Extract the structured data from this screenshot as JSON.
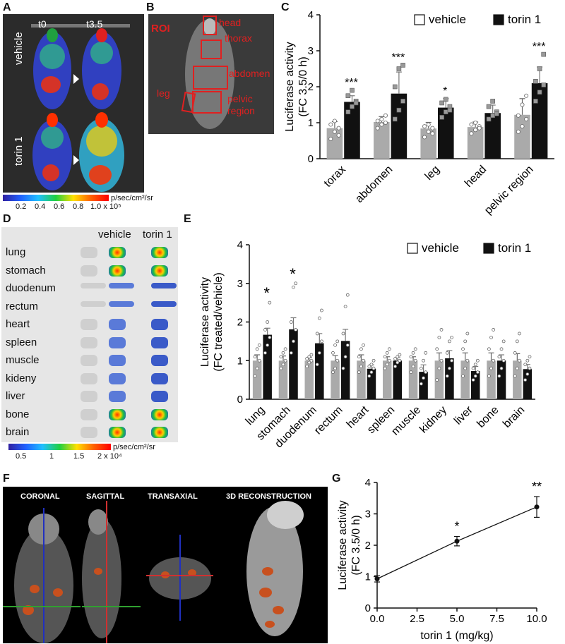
{
  "panels": {
    "A": {
      "letter": "A",
      "cols": [
        "t0",
        "t3.5"
      ],
      "rows": [
        "vehicle",
        "torin 1"
      ],
      "colorbar": {
        "ticks": [
          "0.2",
          "0.4",
          "0.6",
          "0.8",
          "1.0 x 10⁵"
        ],
        "unit": "p/sec/cm²/sr"
      }
    },
    "B": {
      "letter": "B",
      "roi": "ROI",
      "regions": [
        "head",
        "thorax",
        "abdomen",
        "leg",
        "pelvic region"
      ]
    },
    "C": {
      "letter": "C"
    },
    "D": {
      "letter": "D",
      "cols": [
        "vehicle",
        "torin 1"
      ],
      "organs": [
        "lung",
        "stomach",
        "duodenum",
        "rectum",
        "heart",
        "spleen",
        "muscle",
        "kideny",
        "liver",
        "bone",
        "brain"
      ],
      "colorbar": {
        "ticks": [
          "0.5",
          "1",
          "1.5",
          "2 x 10⁴"
        ],
        "unit": "p/sec/cm²/sr"
      }
    },
    "E": {
      "letter": "E"
    },
    "F": {
      "letter": "F",
      "views": [
        "CORONAL",
        "SAGITTAL",
        "TRANSAXIAL",
        "3D RECONSTRUCTION"
      ]
    },
    "G": {
      "letter": "G"
    }
  },
  "chart_data": [
    {
      "id": "C",
      "type": "bar",
      "ylabel": "Luciferase activity\n(FC 3.5/0 h)",
      "categories": [
        "torax",
        "abdomen",
        "leg",
        "head",
        "pelvic region"
      ],
      "ylim": [
        0,
        4
      ],
      "yticks": [
        0,
        1,
        2,
        3,
        4
      ],
      "legend": {
        "position": "top-right"
      },
      "series": [
        {
          "name": "vehicle",
          "color": "#aaaaaa",
          "values": [
            0.85,
            1.02,
            0.84,
            0.88,
            1.22
          ],
          "errors": [
            0.18,
            0.15,
            0.17,
            0.14,
            0.45
          ],
          "points": [
            [
              0.55,
              0.75,
              0.85,
              0.95,
              1.05,
              0.65
            ],
            [
              0.85,
              0.95,
              1.0,
              1.05,
              1.1,
              1.2
            ],
            [
              0.6,
              0.75,
              0.85,
              0.9,
              0.95,
              0.7
            ],
            [
              0.7,
              0.8,
              0.9,
              0.95,
              1.0,
              0.85
            ],
            [
              0.75,
              0.9,
              1.1,
              1.2,
              1.5,
              1.75
            ]
          ]
        },
        {
          "name": "torin 1",
          "color": "#111111",
          "values": [
            1.58,
            1.81,
            1.42,
            1.27,
            2.1
          ],
          "errors": [
            0.17,
            0.6,
            0.25,
            0.22,
            0.45
          ],
          "points": [
            [
              1.3,
              1.45,
              1.6,
              1.75,
              1.9,
              1.55
            ],
            [
              1.1,
              1.35,
              1.6,
              2.0,
              2.5,
              2.6
            ],
            [
              1.15,
              1.3,
              1.45,
              1.55,
              1.65,
              1.35
            ],
            [
              1.1,
              1.2,
              1.3,
              1.45,
              1.6,
              1.25
            ],
            [
              1.6,
              1.85,
              2.05,
              2.15,
              2.5,
              2.9
            ]
          ]
        }
      ],
      "annotations": [
        "***",
        "***",
        "*",
        "",
        "***"
      ]
    },
    {
      "id": "E",
      "type": "bar",
      "ylabel": "Luciferase activity\n(FC treated/vehicle)",
      "categories": [
        "lung",
        "stomach",
        "duodenum",
        "rectum",
        "heart",
        "spleen",
        "muscle",
        "kidney",
        "liver",
        "bone",
        "brain"
      ],
      "ylim": [
        0,
        4
      ],
      "yticks": [
        0,
        1,
        2,
        3,
        4
      ],
      "legend": {
        "position": "top-right"
      },
      "series": [
        {
          "name": "vehicle",
          "color": "#aaaaaa",
          "values": [
            1.0,
            1.0,
            1.0,
            1.0,
            1.0,
            1.0,
            1.0,
            1.0,
            1.0,
            1.0,
            1.0
          ],
          "errors": [
            0.15,
            0.12,
            0.08,
            0.13,
            0.15,
            0.1,
            0.1,
            0.2,
            0.2,
            0.2,
            0.18
          ],
          "points": [
            [
              0.6,
              0.8,
              1.0,
              1.1,
              1.3,
              1.4
            ],
            [
              0.8,
              0.9,
              1.0,
              1.1,
              1.2,
              1.3
            ],
            [
              0.85,
              0.95,
              1.0,
              1.05,
              1.1,
              1.15
            ],
            [
              0.7,
              0.8,
              1.0,
              1.2,
              1.4,
              1.5
            ],
            [
              0.7,
              0.85,
              1.0,
              1.1,
              1.3,
              1.4
            ],
            [
              0.8,
              0.9,
              1.0,
              1.1,
              1.2,
              1.3
            ],
            [
              0.7,
              0.85,
              1.0,
              1.1,
              1.2,
              1.3
            ],
            [
              0.5,
              0.8,
              1.0,
              1.3,
              1.6,
              1.8
            ],
            [
              0.6,
              0.8,
              1.0,
              1.3,
              1.5,
              1.7
            ],
            [
              0.6,
              0.8,
              1.0,
              1.3,
              1.6,
              1.8
            ],
            [
              0.6,
              0.8,
              1.0,
              1.2,
              1.5,
              1.7
            ]
          ]
        },
        {
          "name": "torin 1",
          "color": "#111111",
          "values": [
            1.67,
            1.81,
            1.45,
            1.51,
            0.79,
            1.0,
            0.71,
            1.06,
            0.73,
            1.0,
            0.78
          ],
          "errors": [
            0.17,
            0.3,
            0.25,
            0.3,
            0.1,
            0.08,
            0.18,
            0.2,
            0.12,
            0.15,
            0.12
          ],
          "points": [
            [
              1.2,
              1.4,
              1.6,
              1.8,
              2.0,
              2.5
            ],
            [
              1.2,
              1.5,
              1.8,
              2.0,
              2.9,
              3.0
            ],
            [
              0.9,
              1.2,
              1.5,
              1.7,
              2.1,
              2.3
            ],
            [
              0.8,
              1.1,
              1.4,
              1.7,
              2.4,
              2.7
            ],
            [
              0.6,
              0.7,
              0.8,
              0.85,
              0.9,
              1.0
            ],
            [
              0.85,
              0.95,
              1.0,
              1.05,
              1.1,
              1.15
            ],
            [
              0.4,
              0.55,
              0.7,
              0.8,
              1.0,
              1.2
            ],
            [
              0.6,
              0.8,
              1.0,
              1.2,
              1.5,
              1.6
            ],
            [
              0.5,
              0.6,
              0.7,
              0.8,
              0.9,
              1.0
            ],
            [
              0.6,
              0.8,
              1.0,
              1.1,
              1.3,
              1.5
            ],
            [
              0.5,
              0.65,
              0.8,
              0.9,
              1.0,
              1.1
            ]
          ]
        }
      ],
      "annotations": [
        "*",
        "*",
        "",
        "",
        "",
        "",
        "",
        "",
        "",
        "",
        ""
      ]
    },
    {
      "id": "G",
      "type": "line",
      "ylabel": "Luciferase activity\n(FC 3.5/0 h)",
      "xlabel": "torin 1 (mg/kg)",
      "x": [
        0.0,
        5.0,
        10.0
      ],
      "y": [
        0.93,
        2.13,
        3.22
      ],
      "errors": [
        0.1,
        0.15,
        0.33
      ],
      "xlim": [
        0,
        10
      ],
      "ylim": [
        0,
        4
      ],
      "xticks": [
        "0.0",
        "2.5",
        "5.0",
        "7.5",
        "10.0"
      ],
      "yticks": [
        0,
        1,
        2,
        3,
        4
      ],
      "annotations": [
        "",
        "*",
        "**"
      ]
    }
  ]
}
